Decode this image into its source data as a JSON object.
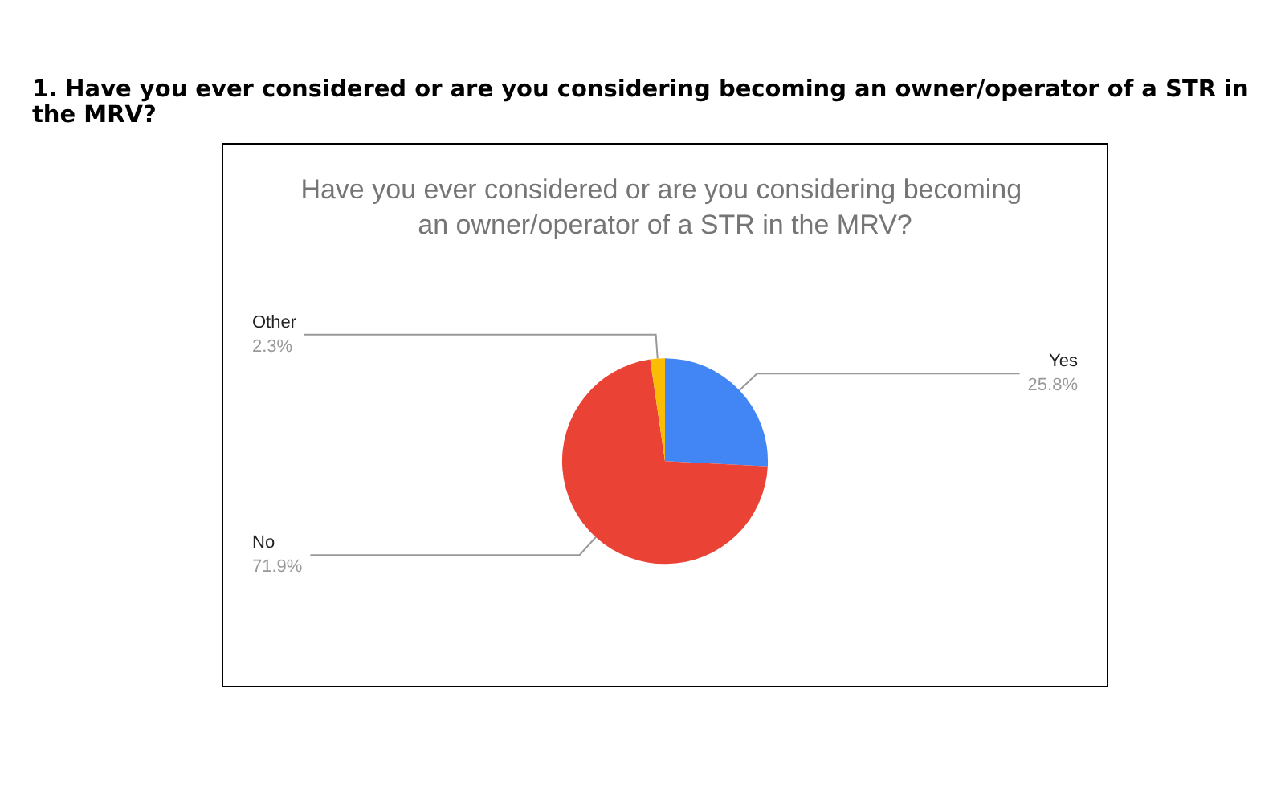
{
  "chart_data": {
    "type": "pie",
    "title": "Have you ever considered or are you considering becoming an owner/operator of a STR in the MRV?",
    "annotations": [
      "1. Have you ever considered or are you considering becoming an owner/operator of a STR in the MRV?"
    ],
    "categories": [
      "Yes",
      "No",
      "Other"
    ],
    "values": [
      25.8,
      71.9,
      2.3
    ],
    "value_labels": [
      "25.8%",
      "71.9%",
      "2.3%"
    ],
    "colors": [
      "#4285f4",
      "#ea4335",
      "#fbbc04"
    ],
    "legend": false
  }
}
